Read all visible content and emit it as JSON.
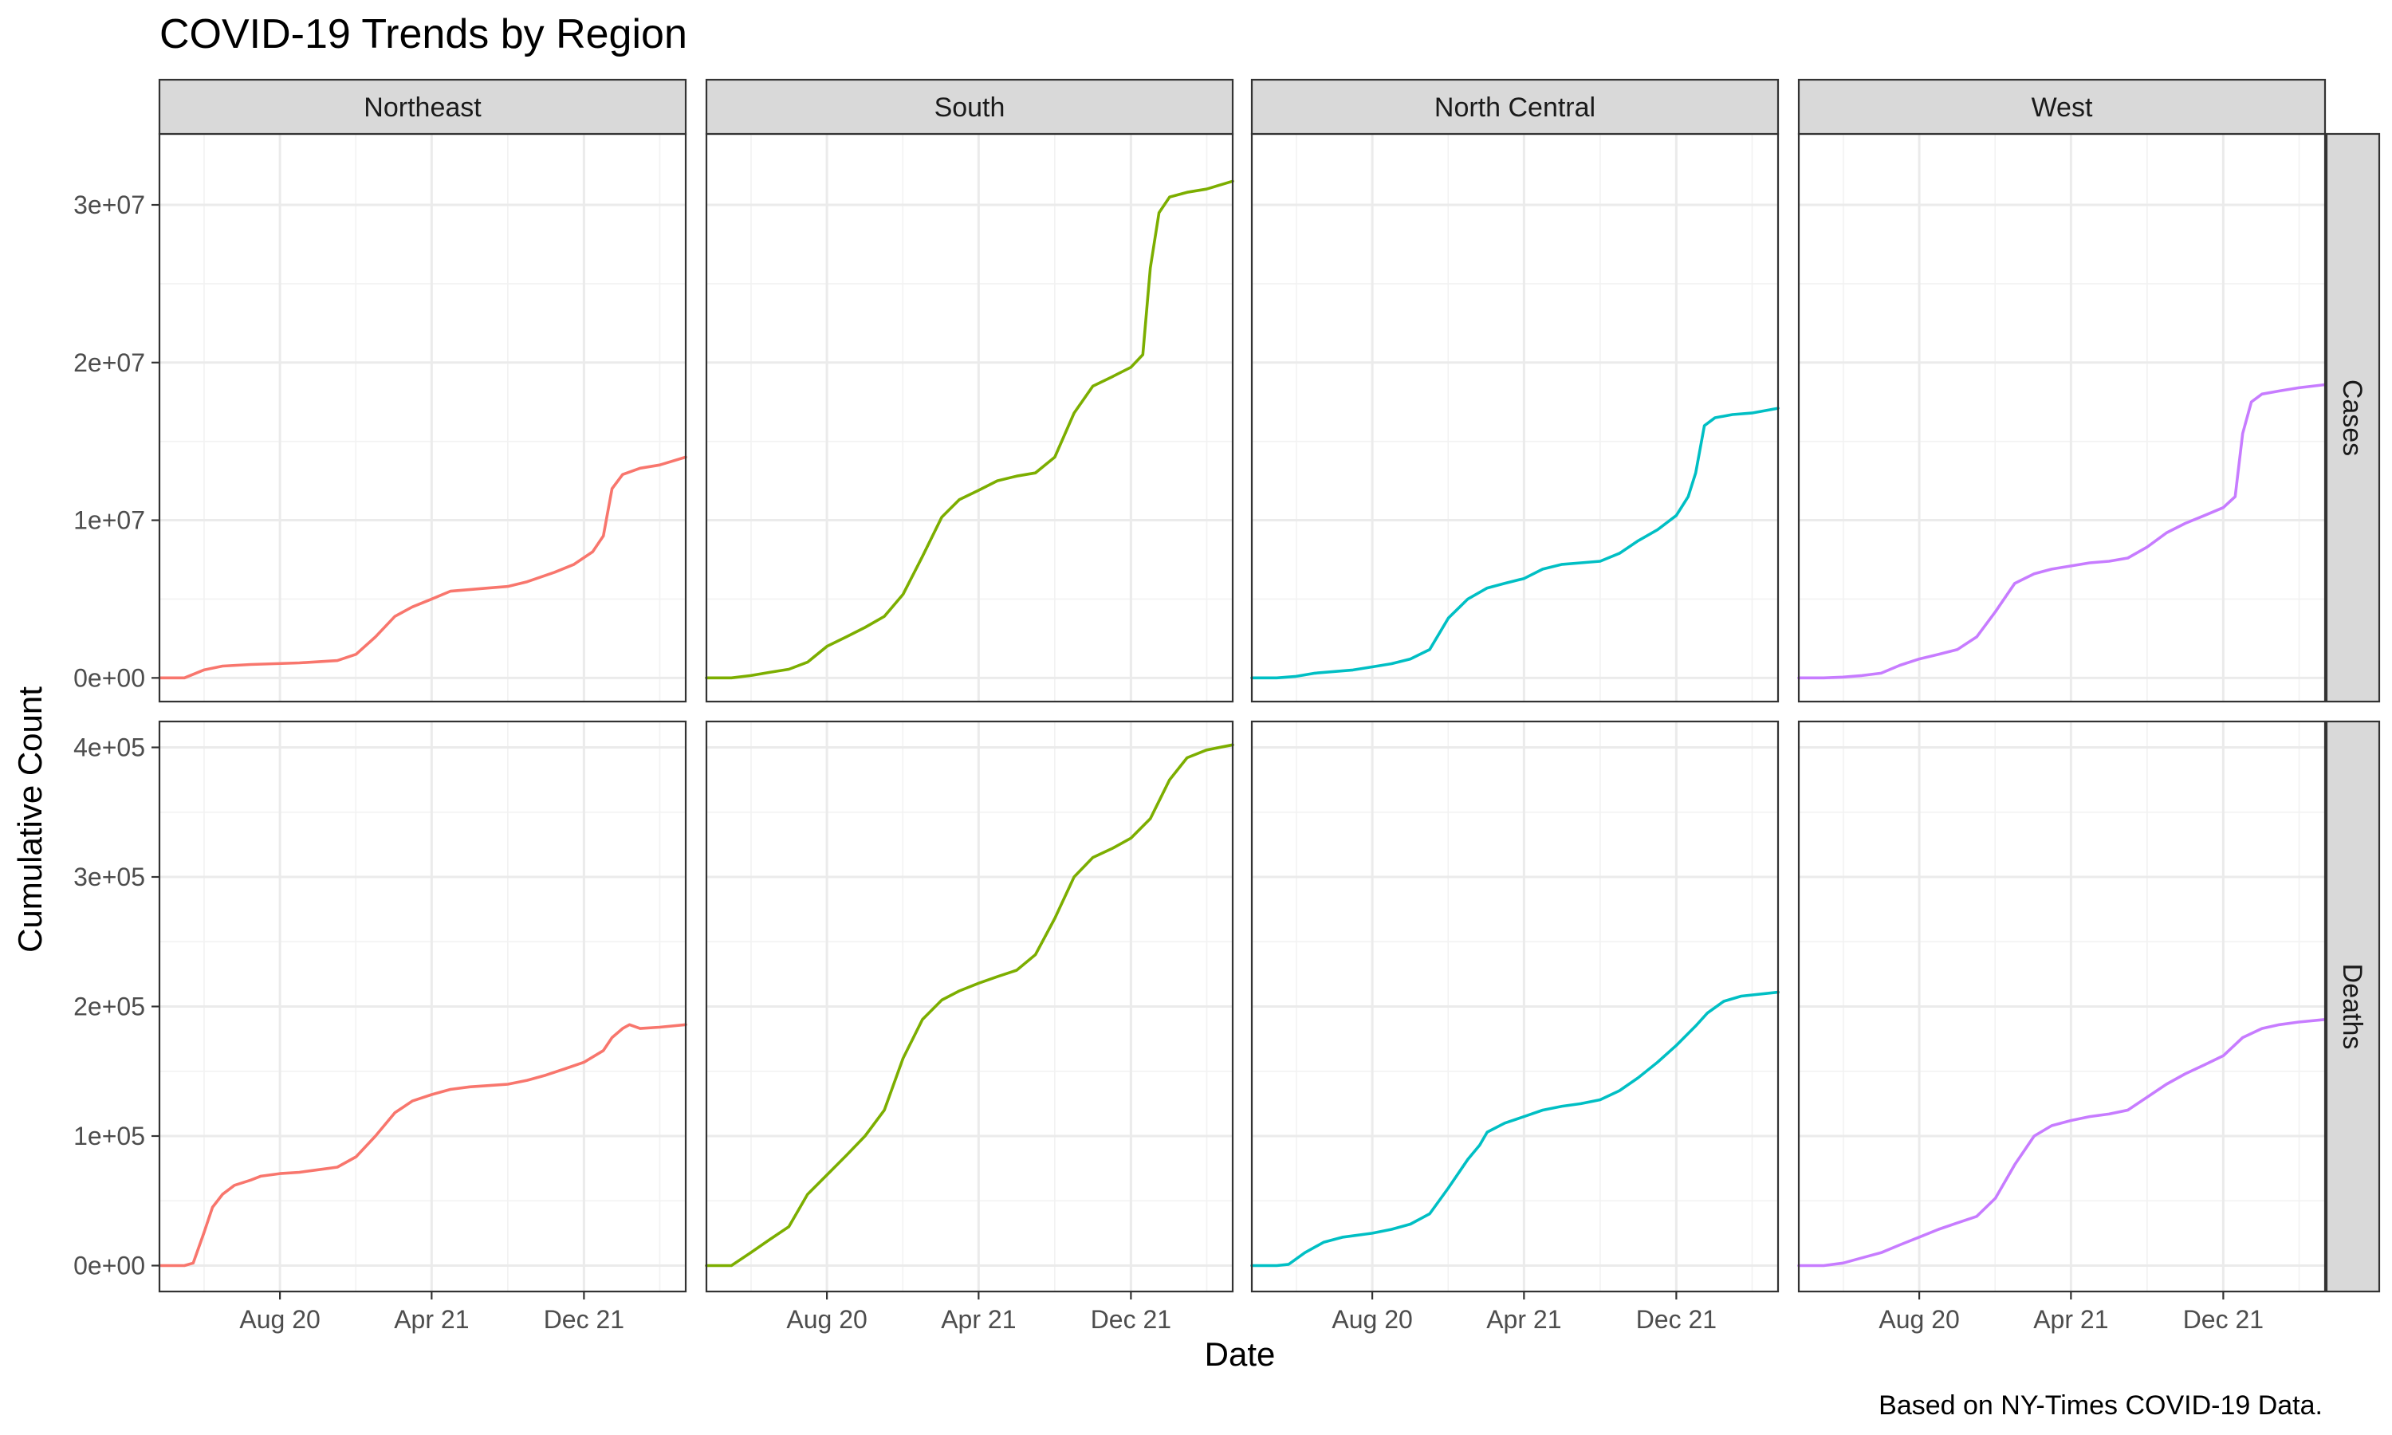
{
  "chart_data": {
    "type": "line",
    "title": "COVID-19 Trends by Region",
    "xlabel": "Date",
    "ylabel": "Cumulative Count",
    "caption": "Based on NY-Times COVID-19 Data.",
    "facet_columns": [
      "Northeast",
      "South",
      "North Central",
      "West"
    ],
    "facet_rows": [
      "Cases",
      "Deaths"
    ],
    "x_range": [
      "2020-01-21",
      "2022-05-13"
    ],
    "x_ticks": [
      {
        "date": "2020-08-01",
        "label": "Aug 20"
      },
      {
        "date": "2021-04-01",
        "label": "Apr 21"
      },
      {
        "date": "2021-12-01",
        "label": "Dec 21"
      }
    ],
    "rows": {
      "Cases": {
        "y_range": [
          -1500000,
          34500000
        ],
        "y_ticks": [
          {
            "value": 0,
            "label": "0e+00"
          },
          {
            "value": 10000000,
            "label": "1e+07"
          },
          {
            "value": 20000000,
            "label": "2e+07"
          },
          {
            "value": 30000000,
            "label": "3e+07"
          }
        ]
      },
      "Deaths": {
        "y_range": [
          -20000,
          420000
        ],
        "y_ticks": [
          {
            "value": 0,
            "label": "0e+00"
          },
          {
            "value": 100000,
            "label": "1e+05"
          },
          {
            "value": 200000,
            "label": "2e+05"
          },
          {
            "value": 300000,
            "label": "3e+05"
          },
          {
            "value": 400000,
            "label": "4e+05"
          }
        ]
      }
    },
    "colors": {
      "Northeast": "#F8766D",
      "South": "#7CAE00",
      "North Central": "#00BFC4",
      "West": "#C77CFF"
    },
    "series": [
      {
        "region": "Northeast",
        "metric": "Cases",
        "x": [
          "2020-01-21",
          "2020-03-01",
          "2020-04-01",
          "2020-05-01",
          "2020-06-15",
          "2020-09-01",
          "2020-11-01",
          "2020-12-01",
          "2021-01-01",
          "2021-02-01",
          "2021-03-01",
          "2021-04-01",
          "2021-05-01",
          "2021-07-01",
          "2021-08-01",
          "2021-09-01",
          "2021-10-15",
          "2021-11-15",
          "2021-12-15",
          "2022-01-01",
          "2022-01-15",
          "2022-02-01",
          "2022-03-01",
          "2022-04-01",
          "2022-05-13"
        ],
        "y": [
          0,
          0,
          500000,
          750000,
          850000,
          950000,
          1100000,
          1500000,
          2600000,
          3900000,
          4500000,
          5000000,
          5500000,
          5700000,
          5800000,
          6100000,
          6700000,
          7200000,
          8000000,
          9000000,
          12000000,
          12900000,
          13300000,
          13500000,
          14000000
        ]
      },
      {
        "region": "South",
        "metric": "Cases",
        "x": [
          "2020-01-21",
          "2020-03-01",
          "2020-04-01",
          "2020-05-01",
          "2020-06-01",
          "2020-07-01",
          "2020-08-01",
          "2020-09-01",
          "2020-10-01",
          "2020-11-01",
          "2020-12-01",
          "2021-01-01",
          "2021-02-01",
          "2021-03-01",
          "2021-04-01",
          "2021-05-01",
          "2021-06-01",
          "2021-07-01",
          "2021-08-01",
          "2021-09-01",
          "2021-10-01",
          "2021-11-01",
          "2021-12-01",
          "2021-12-20",
          "2022-01-01",
          "2022-01-15",
          "2022-02-01",
          "2022-03-01",
          "2022-04-01",
          "2022-05-13"
        ],
        "y": [
          0,
          0,
          150000,
          350000,
          550000,
          1000000,
          2000000,
          2600000,
          3200000,
          3900000,
          5300000,
          7700000,
          10200000,
          11300000,
          11900000,
          12500000,
          12800000,
          13000000,
          14000000,
          16800000,
          18500000,
          19100000,
          19700000,
          20500000,
          26000000,
          29500000,
          30500000,
          30800000,
          31000000,
          31500000
        ]
      },
      {
        "region": "North Central",
        "metric": "Cases",
        "x": [
          "2020-01-21",
          "2020-03-01",
          "2020-04-01",
          "2020-05-01",
          "2020-07-01",
          "2020-08-01",
          "2020-09-01",
          "2020-10-01",
          "2020-11-01",
          "2020-12-01",
          "2021-01-01",
          "2021-02-01",
          "2021-03-01",
          "2021-04-01",
          "2021-05-01",
          "2021-06-01",
          "2021-07-01",
          "2021-08-01",
          "2021-09-01",
          "2021-10-01",
          "2021-11-01",
          "2021-12-01",
          "2021-12-20",
          "2022-01-01",
          "2022-01-15",
          "2022-02-01",
          "2022-03-01",
          "2022-04-01",
          "2022-05-13"
        ],
        "y": [
          0,
          0,
          100000,
          300000,
          500000,
          700000,
          900000,
          1200000,
          1800000,
          3800000,
          5000000,
          5700000,
          6000000,
          6300000,
          6900000,
          7200000,
          7300000,
          7400000,
          7900000,
          8700000,
          9400000,
          10300000,
          11500000,
          13000000,
          16000000,
          16500000,
          16700000,
          16800000,
          17100000
        ]
      },
      {
        "region": "West",
        "metric": "Cases",
        "x": [
          "2020-01-21",
          "2020-03-01",
          "2020-04-01",
          "2020-05-01",
          "2020-06-01",
          "2020-07-01",
          "2020-08-01",
          "2020-09-01",
          "2020-10-01",
          "2020-11-01",
          "2020-12-01",
          "2021-01-01",
          "2021-02-01",
          "2021-03-01",
          "2021-04-01",
          "2021-05-01",
          "2021-06-01",
          "2021-07-01",
          "2021-08-01",
          "2021-09-01",
          "2021-10-01",
          "2021-11-01",
          "2021-12-01",
          "2021-12-20",
          "2022-01-01",
          "2022-01-15",
          "2022-02-01",
          "2022-03-01",
          "2022-04-01",
          "2022-05-13"
        ],
        "y": [
          0,
          0,
          50000,
          150000,
          300000,
          800000,
          1200000,
          1500000,
          1800000,
          2600000,
          4200000,
          6000000,
          6600000,
          6900000,
          7100000,
          7300000,
          7400000,
          7600000,
          8300000,
          9200000,
          9800000,
          10300000,
          10800000,
          11500000,
          15500000,
          17500000,
          18000000,
          18200000,
          18400000,
          18600000
        ]
      },
      {
        "region": "Northeast",
        "metric": "Deaths",
        "x": [
          "2020-01-21",
          "2020-03-01",
          "2020-03-15",
          "2020-04-01",
          "2020-04-15",
          "2020-05-01",
          "2020-05-20",
          "2020-06-15",
          "2020-07-01",
          "2020-08-01",
          "2020-09-01",
          "2020-10-01",
          "2020-11-01",
          "2020-12-01",
          "2021-01-01",
          "2021-02-01",
          "2021-03-01",
          "2021-04-01",
          "2021-05-01",
          "2021-06-01",
          "2021-08-01",
          "2021-09-01",
          "2021-10-01",
          "2021-11-01",
          "2021-12-01",
          "2022-01-01",
          "2022-01-15",
          "2022-02-01",
          "2022-02-12",
          "2022-03-01",
          "2022-04-01",
          "2022-05-13"
        ],
        "y": [
          0,
          0,
          2000,
          25000,
          45000,
          55000,
          62000,
          66000,
          69000,
          71000,
          72000,
          74000,
          76000,
          84000,
          100000,
          118000,
          127000,
          132000,
          136000,
          138000,
          140000,
          143000,
          147000,
          152000,
          157000,
          166000,
          176000,
          183000,
          186000,
          183000,
          184000,
          186000
        ]
      },
      {
        "region": "South",
        "metric": "Deaths",
        "x": [
          "2020-01-21",
          "2020-03-01",
          "2020-04-01",
          "2020-05-01",
          "2020-06-01",
          "2020-07-01",
          "2020-08-01",
          "2020-09-01",
          "2020-10-01",
          "2020-11-01",
          "2020-12-01",
          "2021-01-01",
          "2021-02-01",
          "2021-03-01",
          "2021-04-01",
          "2021-05-01",
          "2021-06-01",
          "2021-07-01",
          "2021-08-01",
          "2021-09-01",
          "2021-10-01",
          "2021-11-01",
          "2021-12-01",
          "2022-01-01",
          "2022-02-01",
          "2022-03-01",
          "2022-04-01",
          "2022-05-13"
        ],
        "y": [
          0,
          0,
          10000,
          20000,
          30000,
          55000,
          70000,
          85000,
          100000,
          120000,
          160000,
          190000,
          205000,
          212000,
          218000,
          223000,
          228000,
          240000,
          268000,
          300000,
          315000,
          322000,
          330000,
          345000,
          375000,
          392000,
          398000,
          402000
        ]
      },
      {
        "region": "North Central",
        "metric": "Deaths",
        "x": [
          "2020-01-21",
          "2020-03-01",
          "2020-03-20",
          "2020-04-15",
          "2020-05-15",
          "2020-06-15",
          "2020-08-01",
          "2020-09-01",
          "2020-10-01",
          "2020-11-01",
          "2020-12-01",
          "2021-01-01",
          "2021-01-20",
          "2021-02-01",
          "2021-03-01",
          "2021-04-01",
          "2021-05-01",
          "2021-06-01",
          "2021-07-01",
          "2021-08-01",
          "2021-09-01",
          "2021-10-01",
          "2021-11-01",
          "2021-12-01",
          "2022-01-01",
          "2022-01-20",
          "2022-02-15",
          "2022-03-15",
          "2022-05-13"
        ],
        "y": [
          0,
          0,
          1000,
          10000,
          18000,
          22000,
          25000,
          28000,
          32000,
          40000,
          60000,
          82000,
          93000,
          103000,
          110000,
          115000,
          120000,
          123000,
          125000,
          128000,
          135000,
          145000,
          157000,
          170000,
          185000,
          195000,
          204000,
          208000,
          211000
        ]
      },
      {
        "region": "West",
        "metric": "Deaths",
        "x": [
          "2020-01-21",
          "2020-03-01",
          "2020-04-01",
          "2020-05-01",
          "2020-06-01",
          "2020-07-01",
          "2020-08-01",
          "2020-09-01",
          "2020-10-01",
          "2020-11-01",
          "2020-12-01",
          "2021-01-01",
          "2021-02-01",
          "2021-03-01",
          "2021-04-01",
          "2021-05-01",
          "2021-06-01",
          "2021-07-01",
          "2021-08-01",
          "2021-09-01",
          "2021-10-01",
          "2021-11-01",
          "2021-12-01",
          "2022-01-01",
          "2022-02-01",
          "2022-03-01",
          "2022-04-01",
          "2022-05-13"
        ],
        "y": [
          0,
          0,
          2000,
          6000,
          10000,
          16000,
          22000,
          28000,
          33000,
          38000,
          52000,
          78000,
          100000,
          108000,
          112000,
          115000,
          117000,
          120000,
          130000,
          140000,
          148000,
          155000,
          162000,
          176000,
          183000,
          186000,
          188000,
          190000
        ]
      }
    ]
  }
}
